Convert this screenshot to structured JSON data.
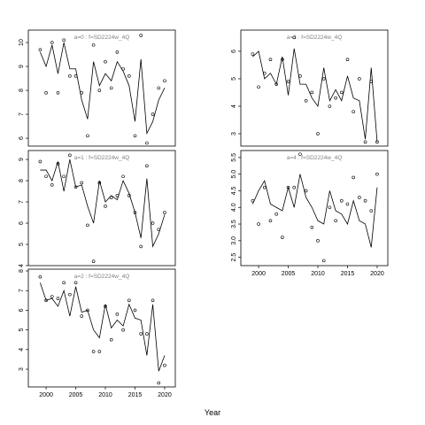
{
  "xlabel": "Year",
  "chart_data": [
    {
      "type": "line",
      "title": "a=0 : f=SD2224w_4Q",
      "x": [
        1999,
        2000,
        2001,
        2002,
        2003,
        2004,
        2005,
        2006,
        2007,
        2008,
        2009,
        2010,
        2011,
        2012,
        2013,
        2014,
        2015,
        2016,
        2017,
        2018,
        2019,
        2020
      ],
      "series": [
        {
          "style": "line",
          "color": "#000000",
          "values": [
            9.6,
            9.0,
            9.9,
            8.7,
            10.0,
            8.9,
            8.9,
            7.6,
            6.8,
            9.2,
            8.2,
            8.7,
            8.4,
            9.2,
            8.8,
            8.2,
            6.7,
            9.3,
            6.2,
            6.7,
            7.6,
            8.1
          ]
        },
        {
          "style": "points",
          "color": "#000000",
          "values": [
            9.7,
            7.9,
            10.0,
            7.9,
            10.1,
            8.6,
            8.6,
            7.9,
            6.1,
            9.9,
            8.0,
            9.2,
            8.1,
            9.6,
            8.9,
            8.6,
            6.1,
            10.3,
            5.8,
            7.0,
            8.1,
            8.4
          ]
        }
      ],
      "xlim": [
        1997.0,
        2021.8
      ],
      "ylim": [
        5.67,
        10.52
      ],
      "yticks": [
        6,
        7,
        8,
        9,
        10
      ]
    },
    {
      "type": "line",
      "title": "a=1 : f=SD2224w_4Q",
      "x": [
        1999,
        2000,
        2001,
        2002,
        2003,
        2004,
        2005,
        2006,
        2007,
        2008,
        2009,
        2010,
        2011,
        2012,
        2013,
        2014,
        2015,
        2016,
        2017,
        2018,
        2019,
        2020
      ],
      "series": [
        {
          "style": "line",
          "color": "#000000",
          "values": [
            8.5,
            8.5,
            8.0,
            8.9,
            7.5,
            9.0,
            7.7,
            7.8,
            6.8,
            6.0,
            8.0,
            7.0,
            7.3,
            7.1,
            8.0,
            7.4,
            6.5,
            5.3,
            8.1,
            4.9,
            5.5,
            6.4
          ]
        },
        {
          "style": "points",
          "color": "#000000",
          "values": [
            8.9,
            8.2,
            7.8,
            8.8,
            8.2,
            9.2,
            7.7,
            7.9,
            5.9,
            4.2,
            7.9,
            6.8,
            7.2,
            7.3,
            8.2,
            7.3,
            6.5,
            4.9,
            8.7,
            6.0,
            5.7,
            6.5
          ]
        }
      ],
      "xlim": [
        1997.0,
        2021.8
      ],
      "ylim": [
        4.0,
        9.42
      ],
      "yticks": [
        4,
        5,
        6,
        7,
        8,
        9
      ]
    },
    {
      "type": "line",
      "title": "a=2 : f=SD2224w_4Q",
      "x": [
        1999,
        2000,
        2001,
        2002,
        2003,
        2004,
        2005,
        2006,
        2007,
        2008,
        2009,
        2010,
        2011,
        2012,
        2013,
        2014,
        2015,
        2016,
        2017,
        2018,
        2019,
        2020
      ],
      "series": [
        {
          "style": "line",
          "color": "#000000",
          "values": [
            7.4,
            6.5,
            6.6,
            6.2,
            7.0,
            5.7,
            7.2,
            5.9,
            6.0,
            5.0,
            4.6,
            6.3,
            5.1,
            5.5,
            5.2,
            6.3,
            5.6,
            5.5,
            3.7,
            6.3,
            2.9,
            3.7
          ]
        },
        {
          "style": "points",
          "color": "#000000",
          "values": [
            7.7,
            6.5,
            6.7,
            6.6,
            7.4,
            6.8,
            7.4,
            5.7,
            6.0,
            3.9,
            3.9,
            6.2,
            4.5,
            5.8,
            5.0,
            6.5,
            6.0,
            4.8,
            4.8,
            6.5,
            2.3,
            3.2
          ]
        }
      ],
      "xlim": [
        1997.0,
        2021.8
      ],
      "ylim": [
        2.1,
        8.09
      ],
      "yticks": [
        3,
        4,
        5,
        6,
        7,
        8
      ],
      "xticks": [
        2000,
        2005,
        2010,
        2015,
        2020
      ]
    },
    {
      "type": "line",
      "title": "a=3 : f=SD2224w_4Q",
      "x": [
        1999,
        2000,
        2001,
        2002,
        2003,
        2004,
        2005,
        2006,
        2007,
        2008,
        2009,
        2010,
        2011,
        2012,
        2013,
        2014,
        2015,
        2016,
        2017,
        2018,
        2019,
        2020
      ],
      "series": [
        {
          "style": "line",
          "color": "#000000",
          "values": [
            5.8,
            6.0,
            5.0,
            5.2,
            4.8,
            5.8,
            4.4,
            6.1,
            4.8,
            4.8,
            4.3,
            4.0,
            5.4,
            4.2,
            4.6,
            4.2,
            5.1,
            4.3,
            4.2,
            2.8,
            5.4,
            2.7
          ]
        },
        {
          "style": "points",
          "color": "#000000",
          "values": [
            5.9,
            4.7,
            5.2,
            5.7,
            4.8,
            5.7,
            4.9,
            6.5,
            5.1,
            4.2,
            4.5,
            3.0,
            5.0,
            4.0,
            4.3,
            4.5,
            5.7,
            3.8,
            5.0,
            2.7,
            4.9,
            2.7
          ]
        }
      ],
      "xlim": [
        1997.0,
        2021.8
      ],
      "ylim": [
        2.55,
        6.77
      ],
      "yticks": [
        3,
        4,
        5,
        6
      ]
    },
    {
      "type": "line",
      "title": "a=4 : f=SD2224w_4Q",
      "x": [
        1999,
        2000,
        2001,
        2002,
        2003,
        2004,
        2005,
        2006,
        2007,
        2008,
        2009,
        2010,
        2011,
        2012,
        2013,
        2014,
        2015,
        2016,
        2017,
        2018,
        2019,
        2020
      ],
      "series": [
        {
          "style": "line",
          "color": "#000000",
          "values": [
            4.1,
            4.5,
            4.8,
            4.1,
            4.0,
            3.9,
            4.6,
            4.0,
            5.0,
            4.3,
            4.0,
            3.6,
            3.5,
            4.5,
            3.9,
            3.8,
            3.5,
            4.2,
            3.6,
            3.5,
            2.8,
            4.6
          ]
        },
        {
          "style": "points",
          "color": "#000000",
          "values": [
            4.2,
            3.5,
            4.6,
            3.6,
            3.8,
            3.1,
            4.6,
            4.6,
            5.6,
            4.5,
            3.4,
            3.0,
            2.4,
            4.0,
            3.6,
            4.2,
            4.1,
            4.9,
            4.3,
            4.2,
            3.9,
            5.0
          ]
        }
      ],
      "xlim": [
        1997.0,
        2021.8
      ],
      "ylim": [
        2.25,
        5.71
      ],
      "yticks": [
        2.5,
        {
          "value": 3,
          "label": "3.0"
        },
        3.5,
        {
          "value": 4,
          "label": "4.0"
        },
        4.5,
        {
          "value": 5,
          "label": "5.0"
        },
        5.5
      ],
      "xticks": [
        2000,
        2005,
        2010,
        2015,
        2020
      ]
    }
  ]
}
